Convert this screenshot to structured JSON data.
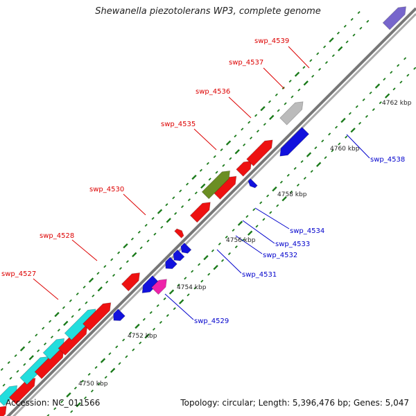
{
  "title": "Shewanella piezotolerans WP3, complete genome",
  "accession": "Accession: NC_011566",
  "summary": "Topology: circular; Length: 5,396,476 bp; Genes: 5,047",
  "colors": {
    "backbone": "#8a8a8a",
    "tick": "#1a7a1a",
    "label_top": "#dd0000",
    "label_bottom": "#0000cc",
    "red": "#ee1111",
    "blue": "#1111dd",
    "cyan": "#22dddd",
    "olive": "#6b8e23",
    "magenta": "#ee22aa",
    "grey": "#bbbbbb",
    "lavender": "#7766cc"
  },
  "kbp_labels": [
    {
      "text": "4750 kbp"
    },
    {
      "text": "4752 kbp"
    },
    {
      "text": "4754 kbp"
    },
    {
      "text": "4756 kbp"
    },
    {
      "text": "4758 kbp"
    },
    {
      "text": "4760 kbp"
    },
    {
      "text": "4762 kbp"
    }
  ],
  "gene_labels": [
    {
      "text": "swp_4527"
    },
    {
      "text": "swp_4528"
    },
    {
      "text": "swp_4530"
    },
    {
      "text": "swp_4535"
    },
    {
      "text": "swp_4536"
    },
    {
      "text": "swp_4537"
    },
    {
      "text": "swp_4539"
    },
    {
      "text": "swp_4529"
    },
    {
      "text": "swp_4531"
    },
    {
      "text": "swp_4532"
    },
    {
      "text": "swp_4533"
    },
    {
      "text": "swp_4534"
    },
    {
      "text": "swp_4538"
    }
  ]
}
